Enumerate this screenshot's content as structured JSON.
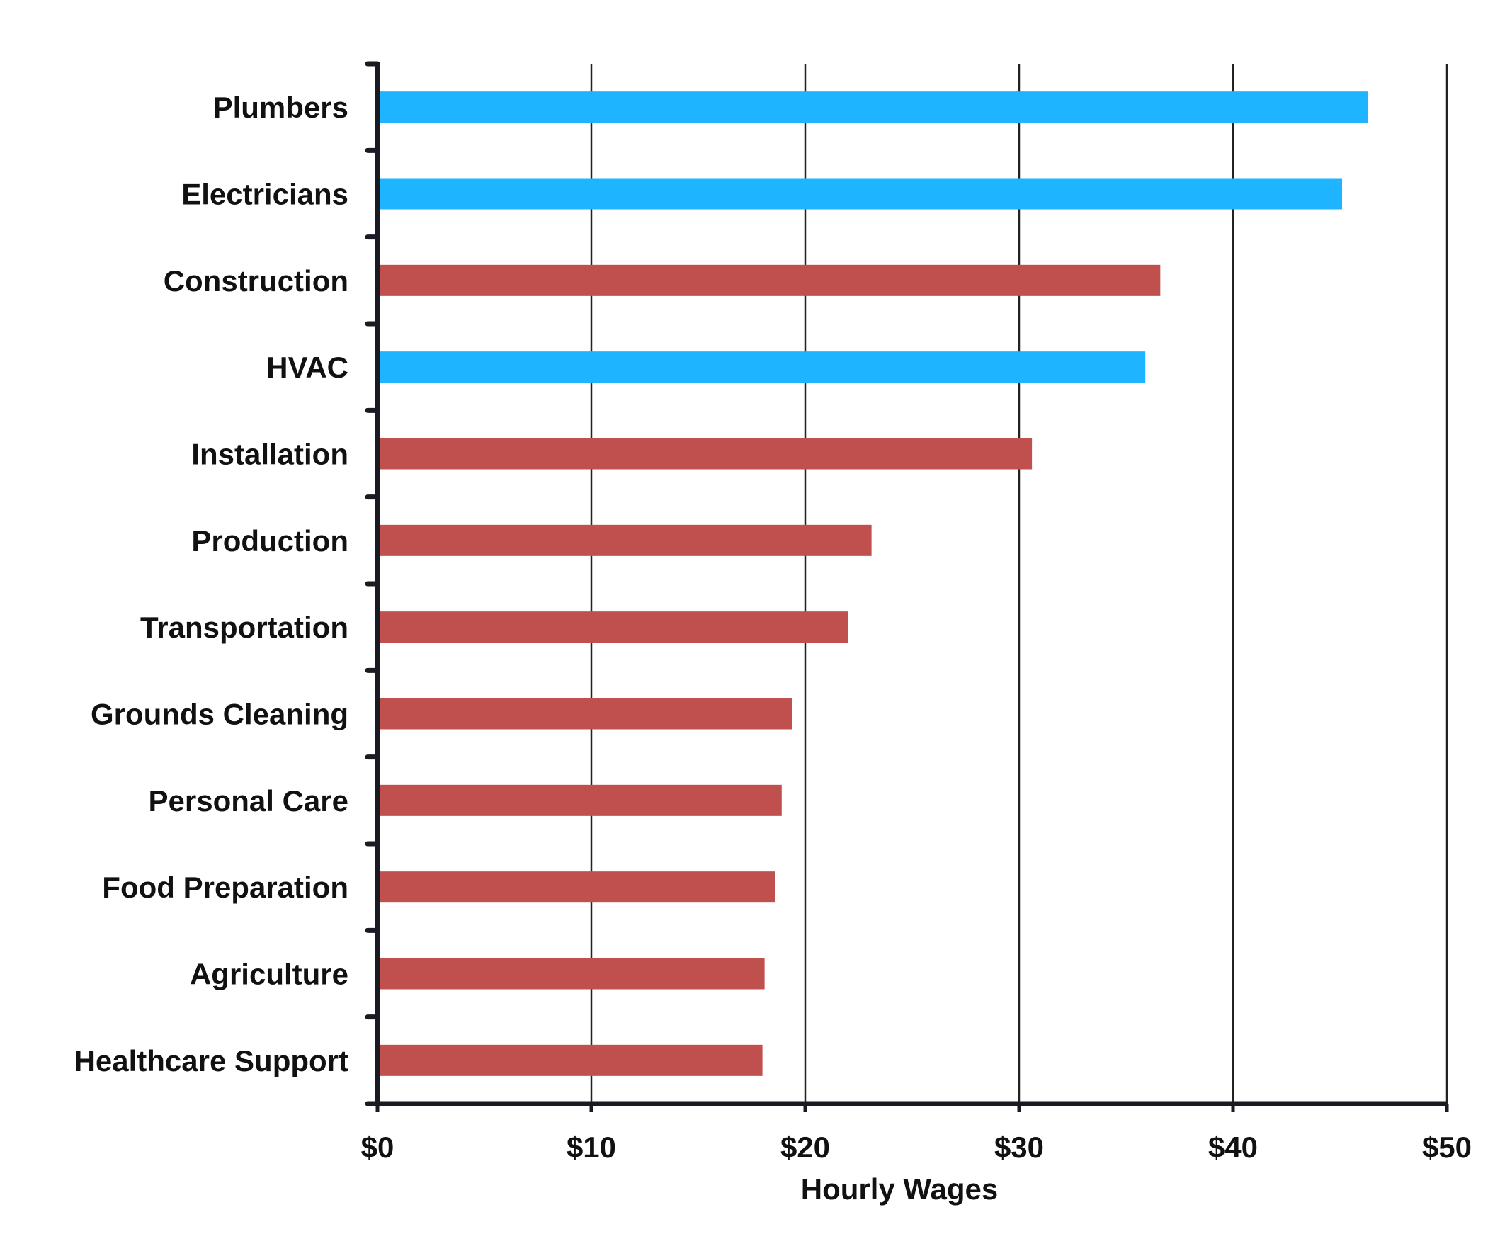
{
  "chart_data": {
    "type": "bar",
    "orientation": "horizontal",
    "title": "",
    "xlabel": "Hourly Wages",
    "ylabel": "",
    "xlim": [
      0,
      50
    ],
    "x_ticks": [
      0,
      10,
      20,
      30,
      40,
      50
    ],
    "x_tick_labels": [
      "$0",
      "$10",
      "$20",
      "$30",
      "$40",
      "$50"
    ],
    "grid": "vertical",
    "legend": "none",
    "categories": [
      "Plumbers",
      "Electricians",
      "Construction",
      "HVAC",
      "Installation",
      "Production",
      "Transportation",
      "Grounds Cleaning",
      "Personal Care",
      "Food Preparation",
      "Agriculture",
      "Healthcare Support"
    ],
    "values": [
      46.3,
      45.1,
      36.6,
      35.9,
      30.6,
      23.1,
      22.0,
      19.4,
      18.9,
      18.6,
      18.1,
      18.0
    ],
    "highlight": [
      true,
      true,
      false,
      true,
      false,
      false,
      false,
      false,
      false,
      false,
      false,
      false
    ],
    "colors": {
      "highlight": "#1EB4FF",
      "default": "#C0504D",
      "axis": "#1a1a22",
      "grid": "#222222",
      "text": "#111111"
    }
  }
}
